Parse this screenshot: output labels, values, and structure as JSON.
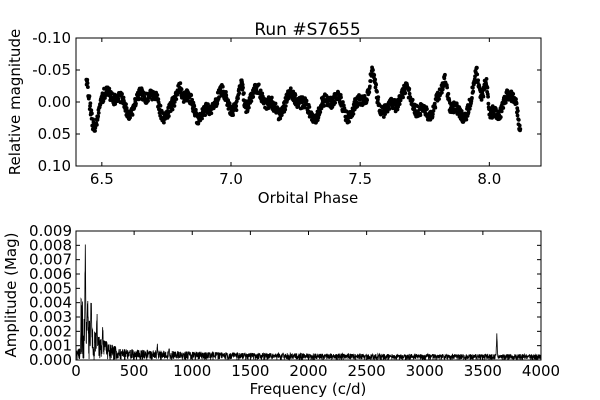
{
  "chart_data": [
    {
      "type": "scatter",
      "title": "Run #S7655",
      "xlabel": "Orbital Phase",
      "ylabel": "Relative magnitude",
      "xlim": [
        6.4,
        8.2
      ],
      "ylim": [
        0.1,
        -0.1
      ],
      "y_inverted": true,
      "x_ticks": [
        6.5,
        7.0,
        7.5,
        8.0
      ],
      "x_tick_labels": [
        "6.5",
        "7.0",
        "7.5",
        "8.0"
      ],
      "y_ticks": [
        -0.1,
        -0.05,
        0.0,
        0.05,
        0.1
      ],
      "y_tick_labels": [
        "-0.10",
        "-0.05",
        "0.00",
        "0.05",
        "0.10"
      ],
      "x_start": 6.44,
      "x_end": 8.12,
      "point_count": 1400,
      "typical_range": [
        -0.03,
        0.035
      ],
      "features": [
        {
          "x": 6.44,
          "y": -0.045
        },
        {
          "x": 6.47,
          "y": 0.02
        },
        {
          "x": 6.8,
          "y": -0.035
        },
        {
          "x": 7.04,
          "y": -0.04
        },
        {
          "x": 7.55,
          "y": -0.035
        },
        {
          "x": 7.83,
          "y": -0.04
        },
        {
          "x": 7.95,
          "y": -0.04
        },
        {
          "x": 7.99,
          "y": -0.045
        },
        {
          "x": 8.0,
          "y": 0.045
        },
        {
          "x": 8.12,
          "y": 0.065
        }
      ],
      "marker_color": "#000000",
      "grid": false
    },
    {
      "type": "line",
      "title": "",
      "xlabel": "Frequency (c/d)",
      "ylabel": "Amplitude (Mag)",
      "xlim": [
        0,
        4000
      ],
      "ylim": [
        0,
        0.009
      ],
      "x_ticks": [
        0,
        500,
        1000,
        1500,
        2000,
        2500,
        3000,
        3500,
        4000
      ],
      "x_tick_labels": [
        "0",
        "500",
        "1000",
        "1500",
        "2000",
        "2500",
        "3000",
        "3500",
        "4000"
      ],
      "y_ticks": [
        0,
        0.001,
        0.002,
        0.003,
        0.004,
        0.005,
        0.006,
        0.007,
        0.008,
        0.009
      ],
      "y_tick_labels": [
        "0.000",
        "0.001",
        "0.002",
        "0.003",
        "0.004",
        "0.005",
        "0.006",
        "0.007",
        "0.008",
        "0.009"
      ],
      "peaks": [
        {
          "x": 80,
          "y": 0.0086
        },
        {
          "x": 100,
          "y": 0.0055
        },
        {
          "x": 130,
          "y": 0.0048
        },
        {
          "x": 180,
          "y": 0.0035
        },
        {
          "x": 230,
          "y": 0.0025
        },
        {
          "x": 700,
          "y": 0.0012
        },
        {
          "x": 800,
          "y": 0.0011
        },
        {
          "x": 3620,
          "y": 0.0019
        }
      ],
      "noise_floor": 0.0004,
      "line_color": "#000000",
      "grid": false
    }
  ]
}
